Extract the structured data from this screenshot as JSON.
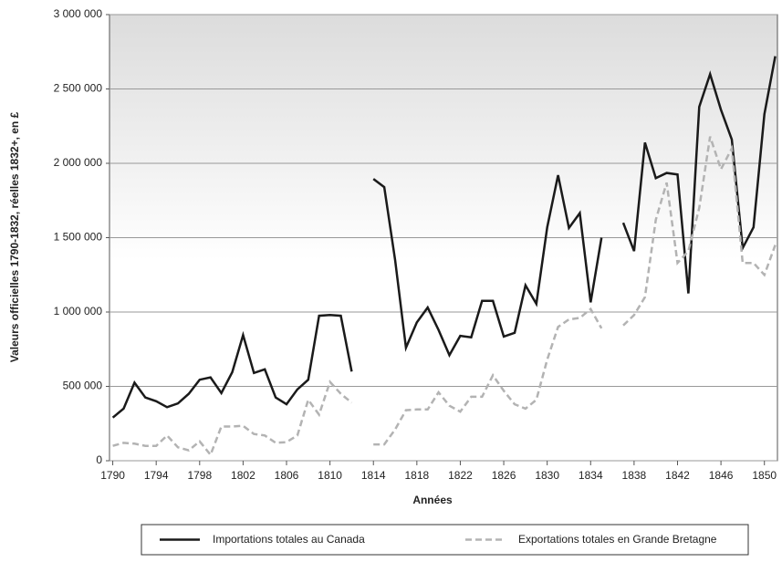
{
  "chart_data": {
    "type": "line",
    "xlabel": "Années",
    "ylabel": "Valeurs officielles 1790-1832, réelles 1832+,  en £",
    "x": [
      1790,
      1791,
      1792,
      1793,
      1794,
      1795,
      1796,
      1797,
      1798,
      1799,
      1800,
      1801,
      1802,
      1803,
      1804,
      1805,
      1806,
      1807,
      1808,
      1809,
      1810,
      1811,
      1812,
      1813,
      1814,
      1815,
      1816,
      1817,
      1818,
      1819,
      1820,
      1821,
      1822,
      1823,
      1824,
      1825,
      1826,
      1827,
      1828,
      1829,
      1830,
      1831,
      1832,
      1833,
      1834,
      1835,
      1836,
      1837,
      1838,
      1839,
      1840,
      1841,
      1842,
      1843,
      1844,
      1845,
      1846,
      1847,
      1848,
      1849,
      1850,
      1851
    ],
    "series": [
      {
        "name": "Importations totales au Canada",
        "color": "#1a1a1a",
        "dash": "solid",
        "values": [
          290000,
          350000,
          525000,
          425000,
          400000,
          360000,
          385000,
          450000,
          545000,
          560000,
          455000,
          595000,
          845000,
          590000,
          615000,
          425000,
          380000,
          480000,
          545000,
          975000,
          980000,
          975000,
          600000,
          null,
          1895000,
          1840000,
          1350000,
          760000,
          930000,
          1030000,
          880000,
          710000,
          840000,
          830000,
          1075000,
          1075000,
          835000,
          860000,
          1180000,
          1055000,
          1570000,
          1920000,
          1565000,
          1665000,
          1065000,
          1500000,
          null,
          1600000,
          1410000,
          2140000,
          1900000,
          1935000,
          1925000,
          1125000,
          2380000,
          2600000,
          2360000,
          2160000,
          1430000,
          1570000,
          2330000,
          2720000
        ]
      },
      {
        "name": "Exportations totales en Grande Bretagne",
        "color": "#b3b3b3",
        "dash": "dashed",
        "values": [
          100000,
          120000,
          115000,
          100000,
          100000,
          170000,
          90000,
          70000,
          130000,
          40000,
          230000,
          230000,
          235000,
          180000,
          170000,
          120000,
          125000,
          170000,
          410000,
          310000,
          530000,
          450000,
          390000,
          null,
          110000,
          110000,
          210000,
          340000,
          345000,
          345000,
          460000,
          370000,
          330000,
          430000,
          430000,
          575000,
          470000,
          380000,
          350000,
          410000,
          680000,
          900000,
          950000,
          960000,
          1020000,
          890000,
          null,
          910000,
          980000,
          1100000,
          1620000,
          1870000,
          1330000,
          1410000,
          1700000,
          2180000,
          1960000,
          2100000,
          1330000,
          1330000,
          1250000,
          1450000
        ]
      }
    ],
    "xlim": [
      1789.7,
      1851.2
    ],
    "xticks": [
      1790,
      1794,
      1798,
      1802,
      1806,
      1810,
      1814,
      1818,
      1822,
      1826,
      1830,
      1834,
      1838,
      1842,
      1846,
      1850
    ],
    "ylim": [
      0,
      3000000
    ],
    "yticks": [
      0,
      {
        "value": 500000,
        "label": "500 000"
      },
      {
        "value": 1000000,
        "label": "1 000 000"
      },
      {
        "value": 1500000,
        "label": "1 500 000"
      },
      {
        "value": 2000000,
        "label": "2 000 000"
      },
      {
        "value": 2500000,
        "label": "2 500 000"
      },
      {
        "value": 3000000,
        "label": "3 000 000"
      }
    ],
    "grid": true,
    "legend": "bottom"
  }
}
